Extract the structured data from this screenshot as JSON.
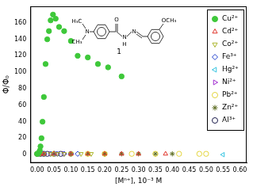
{
  "chart_data": {
    "type": "scatter",
    "x_label": "[Mⁿ⁺], 10⁻³ M",
    "y_label": "Φ/Φ₀",
    "annotations": [
      "H₃C",
      "N",
      "CH₃",
      "O",
      "N",
      "H",
      "N",
      "OCH₃",
      "1"
    ],
    "xlim": [
      -0.02,
      0.62
    ],
    "xticks": [
      {
        "value": 0,
        "label": "0.00"
      },
      {
        "value": 0.05,
        "label": "0.05"
      },
      {
        "value": 0.1,
        "label": "0.10"
      },
      {
        "value": 0.15,
        "label": "0.15"
      },
      {
        "value": 0.2,
        "label": "0.20"
      },
      {
        "value": 0.25,
        "label": "0.25"
      },
      {
        "value": 0.3,
        "label": "0.30"
      },
      {
        "value": 0.35,
        "label": "0.35"
      },
      {
        "value": 0.4,
        "label": "0.40"
      },
      {
        "value": 0.45,
        "label": "0.45"
      },
      {
        "value": 0.5,
        "label": "0.50"
      },
      {
        "value": 0.55,
        "label": "0.55"
      },
      {
        "value": 0.6,
        "label": "0.60"
      }
    ],
    "ylim": [
      -10,
      180
    ],
    "yticks": [
      0,
      20,
      40,
      60,
      80,
      100,
      120,
      140,
      160
    ],
    "grid": false,
    "legend": "upper right",
    "series": [
      {
        "name": "Cu²⁺",
        "color": "#3ec83a",
        "marker": "circle-filled",
        "x": [
          0,
          0.002,
          0.004,
          0.006,
          0.008,
          0.01,
          0.013,
          0.016,
          0.02,
          0.025,
          0.03,
          0.035,
          0.04,
          0.047,
          0.055,
          0.065,
          0.08,
          0.1,
          0.12,
          0.15,
          0.18,
          0.21,
          0.25
        ],
        "values": [
          1,
          1,
          2,
          3,
          5,
          10,
          20,
          40,
          70,
          110,
          140,
          150,
          163,
          170,
          165,
          155,
          150,
          138,
          120,
          118,
          110,
          106,
          95
        ]
      },
      {
        "name": "Cd²⁺",
        "color": "#e0342a",
        "marker": "triangle-up",
        "x": [
          0,
          0.01,
          0.02,
          0.05,
          0.1,
          0.15,
          0.2,
          0.25,
          0.3,
          0.38
        ],
        "values": [
          1,
          1,
          1,
          1,
          1,
          1,
          1,
          1,
          1,
          1
        ]
      },
      {
        "name": "Co²⁺",
        "color": "#aab52a",
        "marker": "triangle-down",
        "x": [
          0,
          0.01,
          0.02,
          0.04,
          0.06,
          0.08,
          0.1,
          0.13,
          0.16,
          0.2
        ],
        "values": [
          1,
          1,
          1,
          1,
          1,
          1,
          1,
          1,
          1,
          1
        ]
      },
      {
        "name": "Fe³⁺",
        "color": "#1f3fcf",
        "marker": "diamond",
        "x": [
          0,
          0.01,
          0.02,
          0.04,
          0.06,
          0.08,
          0.1,
          0.12
        ],
        "values": [
          1,
          1,
          1,
          1,
          1,
          1,
          1,
          1
        ]
      },
      {
        "name": "Hg²⁺",
        "color": "#33c3e0",
        "marker": "triangle-left",
        "x": [
          0,
          0.02,
          0.05,
          0.55
        ],
        "values": [
          1,
          1,
          1,
          0
        ]
      },
      {
        "name": "Ni²⁺",
        "color": "#a02ad0",
        "marker": "triangle-right",
        "x": [
          0,
          0.01,
          0.02,
          0.04,
          0.06,
          0.08,
          0.1
        ],
        "values": [
          1,
          1,
          1,
          1,
          1,
          1,
          1
        ]
      },
      {
        "name": "Pb²⁺",
        "color": "#e3d43a",
        "marker": "circle",
        "x": [
          0,
          0.05,
          0.1,
          0.15,
          0.2,
          0.28,
          0.35,
          0.42,
          0.48,
          0.5
        ],
        "values": [
          1,
          1,
          1,
          1,
          1,
          1,
          1,
          1,
          1,
          1
        ]
      },
      {
        "name": "Zn²⁺",
        "color": "#5a6a1e",
        "marker": "star",
        "x": [
          0,
          0.02,
          0.05,
          0.1,
          0.15,
          0.2,
          0.25,
          0.3,
          0.35,
          0.4
        ],
        "values": [
          1,
          1,
          1,
          1,
          1,
          1,
          1,
          1,
          1,
          1
        ]
      },
      {
        "name": "Al³⁺",
        "color": "#1a1a4a",
        "marker": "circle",
        "x": [
          0,
          0.01,
          0.02,
          0.03,
          0.05,
          0.07
        ],
        "values": [
          1,
          1,
          1,
          1,
          1,
          1
        ]
      }
    ]
  }
}
